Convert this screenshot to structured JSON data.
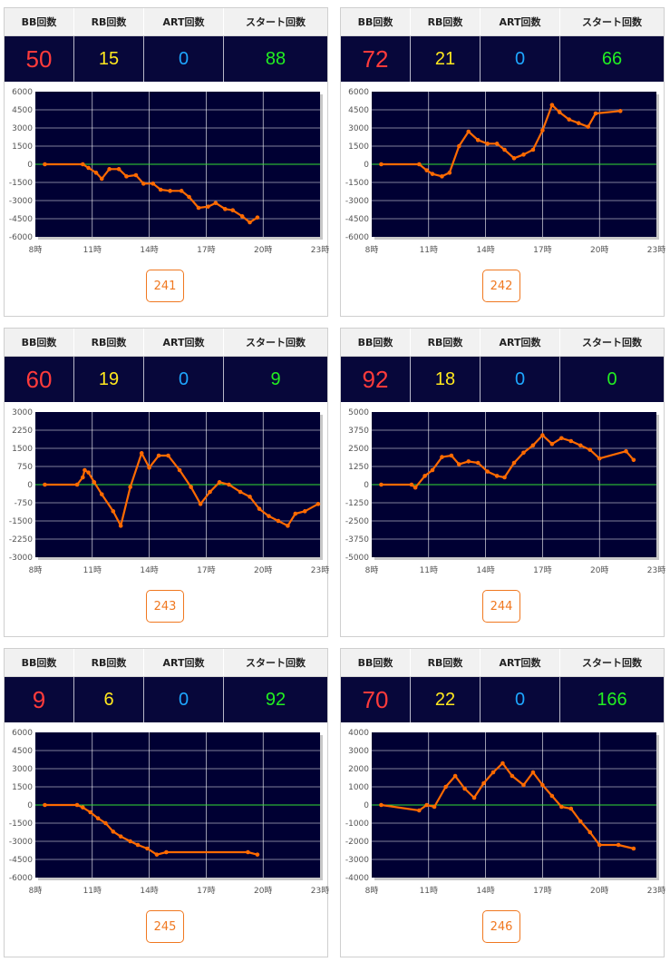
{
  "headers": {
    "bb": "BB回数",
    "rb": "RB回数",
    "art": "ART回数",
    "start": "スタート回数"
  },
  "colors": {
    "bb": "#ff3b3b",
    "rb": "#ffe81e",
    "art": "#1ea7ff",
    "start": "#22ee22",
    "plot_bg": "#000033",
    "line": "#ff6a00",
    "zero_line": "#33dd33"
  },
  "machines": [
    {
      "number": "241",
      "bb": "50",
      "rb": "15",
      "art": "0",
      "start": "88"
    },
    {
      "number": "242",
      "bb": "72",
      "rb": "21",
      "art": "0",
      "start": "66"
    },
    {
      "number": "243",
      "bb": "60",
      "rb": "19",
      "art": "0",
      "start": "9"
    },
    {
      "number": "244",
      "bb": "92",
      "rb": "18",
      "art": "0",
      "start": "0"
    },
    {
      "number": "245",
      "bb": "9",
      "rb": "6",
      "art": "0",
      "start": "92"
    },
    {
      "number": "246",
      "bb": "70",
      "rb": "22",
      "art": "0",
      "start": "166"
    }
  ],
  "chart_data": [
    {
      "type": "line",
      "machine": "241",
      "x_ticks": [
        "8時",
        "11時",
        "14時",
        "17時",
        "20時",
        "23時"
      ],
      "xlim": [
        8,
        23
      ],
      "y_ticks": [
        "6000",
        "4500",
        "3000",
        "1500",
        "0",
        "-1500",
        "-3000",
        "-4500",
        "-6000"
      ],
      "ylim": [
        -6000,
        6000
      ],
      "grid": true,
      "points": [
        [
          8.5,
          0
        ],
        [
          10.5,
          0
        ],
        [
          10.8,
          -300
        ],
        [
          11.2,
          -700
        ],
        [
          11.5,
          -1200
        ],
        [
          11.9,
          -400
        ],
        [
          12.4,
          -400
        ],
        [
          12.8,
          -1000
        ],
        [
          13.3,
          -900
        ],
        [
          13.7,
          -1600
        ],
        [
          14.2,
          -1600
        ],
        [
          14.6,
          -2100
        ],
        [
          15.1,
          -2200
        ],
        [
          15.7,
          -2200
        ],
        [
          16.1,
          -2700
        ],
        [
          16.6,
          -3600
        ],
        [
          17.1,
          -3500
        ],
        [
          17.5,
          -3200
        ],
        [
          18.0,
          -3700
        ],
        [
          18.4,
          -3800
        ],
        [
          18.9,
          -4300
        ],
        [
          19.3,
          -4800
        ],
        [
          19.7,
          -4400
        ]
      ]
    },
    {
      "type": "line",
      "machine": "242",
      "x_ticks": [
        "8時",
        "11時",
        "14時",
        "17時",
        "20時",
        "23時"
      ],
      "xlim": [
        8,
        23
      ],
      "y_ticks": [
        "6000",
        "4500",
        "3000",
        "1500",
        "0",
        "-1500",
        "-3000",
        "-4500",
        "-6000"
      ],
      "ylim": [
        -6000,
        6000
      ],
      "grid": true,
      "points": [
        [
          8.5,
          0
        ],
        [
          10.5,
          0
        ],
        [
          10.9,
          -500
        ],
        [
          11.2,
          -800
        ],
        [
          11.7,
          -1000
        ],
        [
          12.1,
          -700
        ],
        [
          12.6,
          1500
        ],
        [
          13.1,
          2700
        ],
        [
          13.6,
          2000
        ],
        [
          14.1,
          1700
        ],
        [
          14.6,
          1700
        ],
        [
          15.0,
          1200
        ],
        [
          15.5,
          500
        ],
        [
          16.0,
          800
        ],
        [
          16.5,
          1200
        ],
        [
          17.0,
          2800
        ],
        [
          17.5,
          4900
        ],
        [
          17.9,
          4300
        ],
        [
          18.4,
          3700
        ],
        [
          18.9,
          3400
        ],
        [
          19.4,
          3100
        ],
        [
          19.8,
          4200
        ],
        [
          21.1,
          4400
        ]
      ]
    },
    {
      "type": "line",
      "machine": "243",
      "x_ticks": [
        "8時",
        "11時",
        "14時",
        "17時",
        "20時",
        "23時"
      ],
      "xlim": [
        8,
        23
      ],
      "y_ticks": [
        "3000",
        "2250",
        "1500",
        "750",
        "0",
        "-750",
        "-1500",
        "-2250",
        "-3000"
      ],
      "ylim": [
        -3000,
        3000
      ],
      "grid": true,
      "points": [
        [
          8.5,
          0
        ],
        [
          10.2,
          0
        ],
        [
          10.5,
          300
        ],
        [
          10.6,
          600
        ],
        [
          10.8,
          500
        ],
        [
          11.1,
          100
        ],
        [
          11.5,
          -400
        ],
        [
          12.1,
          -1100
        ],
        [
          12.5,
          -1700
        ],
        [
          13.0,
          -100
        ],
        [
          13.6,
          1300
        ],
        [
          14.0,
          700
        ],
        [
          14.5,
          1200
        ],
        [
          15.0,
          1200
        ],
        [
          15.6,
          600
        ],
        [
          16.2,
          -100
        ],
        [
          16.7,
          -800
        ],
        [
          17.2,
          -300
        ],
        [
          17.7,
          100
        ],
        [
          18.2,
          0
        ],
        [
          18.8,
          -300
        ],
        [
          19.3,
          -500
        ],
        [
          19.8,
          -1000
        ],
        [
          20.3,
          -1300
        ],
        [
          20.8,
          -1500
        ],
        [
          21.3,
          -1700
        ],
        [
          21.7,
          -1200
        ],
        [
          22.2,
          -1100
        ],
        [
          22.9,
          -800
        ]
      ]
    },
    {
      "type": "line",
      "machine": "244",
      "x_ticks": [
        "8時",
        "11時",
        "14時",
        "17時",
        "20時",
        "23時"
      ],
      "xlim": [
        8,
        23
      ],
      "y_ticks": [
        "5000",
        "3750",
        "2500",
        "1250",
        "0",
        "-1250",
        "-2500",
        "-3750",
        "-5000"
      ],
      "ylim": [
        -5000,
        5000
      ],
      "grid": true,
      "points": [
        [
          8.5,
          0
        ],
        [
          10.1,
          0
        ],
        [
          10.3,
          -200
        ],
        [
          10.8,
          600
        ],
        [
          11.2,
          1000
        ],
        [
          11.7,
          1900
        ],
        [
          12.2,
          2000
        ],
        [
          12.6,
          1400
        ],
        [
          13.1,
          1600
        ],
        [
          13.6,
          1500
        ],
        [
          14.1,
          900
        ],
        [
          14.6,
          600
        ],
        [
          15.0,
          500
        ],
        [
          15.5,
          1500
        ],
        [
          16.0,
          2200
        ],
        [
          16.5,
          2700
        ],
        [
          17.0,
          3400
        ],
        [
          17.5,
          2800
        ],
        [
          18.0,
          3200
        ],
        [
          18.5,
          3000
        ],
        [
          19.0,
          2700
        ],
        [
          19.5,
          2400
        ],
        [
          20.0,
          1800
        ],
        [
          21.4,
          2300
        ],
        [
          21.8,
          1700
        ]
      ]
    },
    {
      "type": "line",
      "machine": "245",
      "x_ticks": [
        "8時",
        "11時",
        "14時",
        "17時",
        "20時",
        "23時"
      ],
      "xlim": [
        8,
        23
      ],
      "y_ticks": [
        "6000",
        "4500",
        "3000",
        "1500",
        "0",
        "-1500",
        "-3000",
        "-4500",
        "-6000"
      ],
      "ylim": [
        -6000,
        6000
      ],
      "grid": true,
      "points": [
        [
          8.5,
          0
        ],
        [
          10.2,
          0
        ],
        [
          10.5,
          -200
        ],
        [
          10.9,
          -600
        ],
        [
          11.3,
          -1100
        ],
        [
          11.7,
          -1500
        ],
        [
          12.1,
          -2200
        ],
        [
          12.5,
          -2600
        ],
        [
          13.0,
          -3000
        ],
        [
          13.4,
          -3300
        ],
        [
          13.9,
          -3600
        ],
        [
          14.4,
          -4100
        ],
        [
          14.9,
          -3900
        ],
        [
          19.2,
          -3900
        ],
        [
          19.7,
          -4100
        ]
      ]
    },
    {
      "type": "line",
      "machine": "246",
      "x_ticks": [
        "8時",
        "11時",
        "14時",
        "17時",
        "20時",
        "23時"
      ],
      "xlim": [
        8,
        23
      ],
      "y_ticks": [
        "4000",
        "3000",
        "2000",
        "1000",
        "0",
        "-1000",
        "-2000",
        "-3000",
        "-4000"
      ],
      "ylim": [
        -4000,
        4000
      ],
      "grid": true,
      "points": [
        [
          8.5,
          0
        ],
        [
          10.5,
          -300
        ],
        [
          10.9,
          0
        ],
        [
          11.3,
          -100
        ],
        [
          11.9,
          1000
        ],
        [
          12.4,
          1600
        ],
        [
          12.9,
          900
        ],
        [
          13.4,
          400
        ],
        [
          13.9,
          1200
        ],
        [
          14.4,
          1800
        ],
        [
          14.9,
          2300
        ],
        [
          15.4,
          1600
        ],
        [
          16.0,
          1100
        ],
        [
          16.5,
          1800
        ],
        [
          17.0,
          1100
        ],
        [
          17.5,
          500
        ],
        [
          18.0,
          -100
        ],
        [
          18.5,
          -200
        ],
        [
          19.0,
          -900
        ],
        [
          19.5,
          -1500
        ],
        [
          20.0,
          -2200
        ],
        [
          21.0,
          -2200
        ],
        [
          21.8,
          -2400
        ]
      ]
    }
  ]
}
